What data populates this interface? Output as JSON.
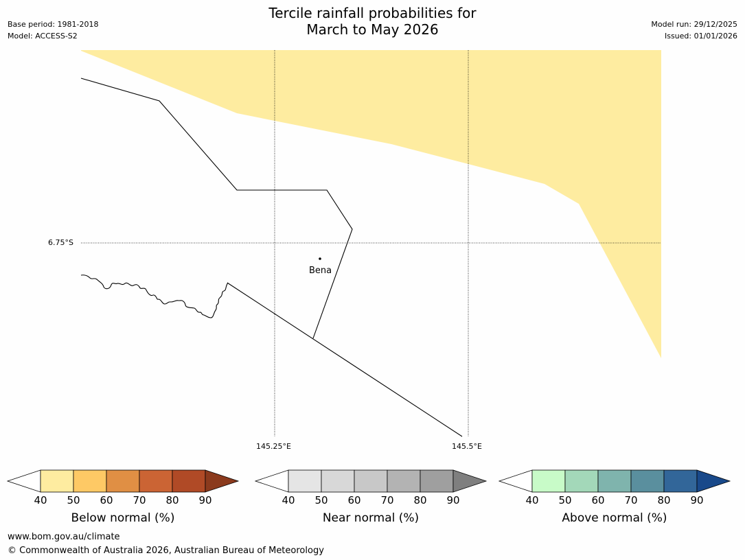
{
  "title": {
    "line1": "Tercile rainfall probabilities for",
    "line2": "March to May 2026"
  },
  "meta": {
    "base_period": "Base period: 1981-2018",
    "model": "Model: ACCESS-S2",
    "model_run": "Model run: 29/12/2025",
    "issued": "Issued: 01/01/2026"
  },
  "map": {
    "lat_label": "6.75°S",
    "lon_labels": [
      "145.25°E",
      "145.5°E"
    ],
    "place": "Bena",
    "shading_color": "#feeca0"
  },
  "colorbars": [
    {
      "label": "Below normal (%)",
      "ticks": [
        "40",
        "50",
        "60",
        "70",
        "80",
        "90"
      ],
      "colors": [
        "#ffffff",
        "#feeca0",
        "#fec965",
        "#e08f44",
        "#cb6434",
        "#b04a26",
        "#8b3a1d"
      ]
    },
    {
      "label": "Near normal (%)",
      "ticks": [
        "40",
        "50",
        "60",
        "70",
        "80",
        "90"
      ],
      "colors": [
        "#ffffff",
        "#e5e5e5",
        "#d8d8d8",
        "#c8c8c8",
        "#b3b3b3",
        "#9f9f9f",
        "#7f7f7f"
      ]
    },
    {
      "label": "Above normal (%)",
      "ticks": [
        "40",
        "50",
        "60",
        "70",
        "80",
        "90"
      ],
      "colors": [
        "#ffffff",
        "#c8fbc8",
        "#a3d8b9",
        "#7fb4ad",
        "#5a8f9e",
        "#326699",
        "#19498a"
      ]
    }
  ],
  "footer": {
    "url": "www.bom.gov.au/climate",
    "copyright": "© Commonwealth of Australia 2026, Australian Bureau of Meteorology"
  }
}
